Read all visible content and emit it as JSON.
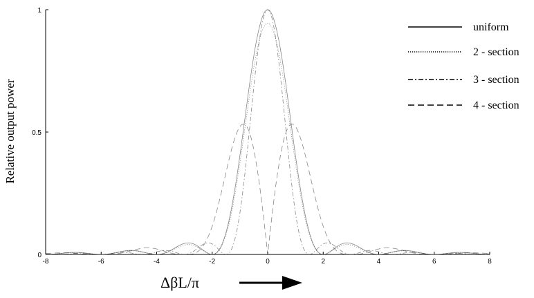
{
  "chart_data": {
    "type": "line",
    "title": "",
    "xlabel": "ΔβL/π",
    "ylabel": "Relative output power",
    "xlim": [
      -8,
      8
    ],
    "ylim": [
      0,
      1
    ],
    "x_ticks": [
      -8,
      -6,
      -4,
      -2,
      0,
      2,
      4,
      6,
      8
    ],
    "y_ticks": [
      {
        "value": 0,
        "label": "0"
      },
      {
        "value": 0.5,
        "label": "0.5"
      },
      {
        "value": 1,
        "label": "1"
      }
    ],
    "grid": false,
    "legend_position": "top-right",
    "series": [
      {
        "name": "uniform",
        "style": "solid"
      },
      {
        "name": "2 - section",
        "style": "dotted"
      },
      {
        "name": "3 - section",
        "style": "dashdot"
      },
      {
        "name": "4 - section",
        "style": "dashed"
      }
    ]
  }
}
